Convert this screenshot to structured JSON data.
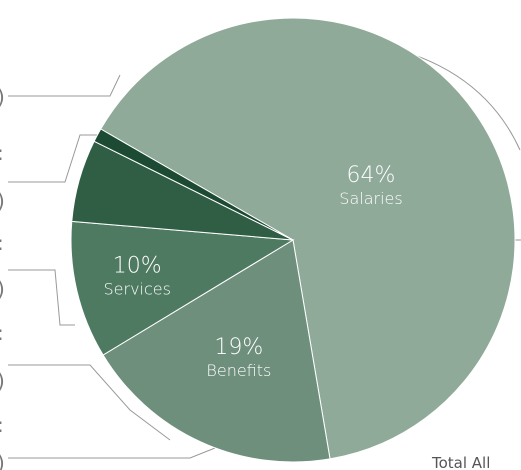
{
  "chart_data": {
    "type": "pie",
    "slices": [
      {
        "label": "Salaries",
        "value": 64,
        "value_label": "64%",
        "color": "#8faa99"
      },
      {
        "label": "Benefits",
        "value": 19,
        "value_label": "19%",
        "color": "#6e8f7c"
      },
      {
        "label": "Services",
        "value": 10,
        "value_label": "10%",
        "color": "#4f7a62"
      },
      {
        "label": "",
        "value": 6,
        "value_label": "",
        "color": "#2f5e44"
      },
      {
        "label": "",
        "value": 1,
        "value_label": "",
        "color": "#1d4a33"
      }
    ],
    "footer_text": "Total All",
    "left_edge_glyphs": [
      ")",
      ":",
      ")",
      ":",
      ")",
      ":",
      ")",
      ":",
      ")"
    ],
    "line_color": "#999999"
  }
}
